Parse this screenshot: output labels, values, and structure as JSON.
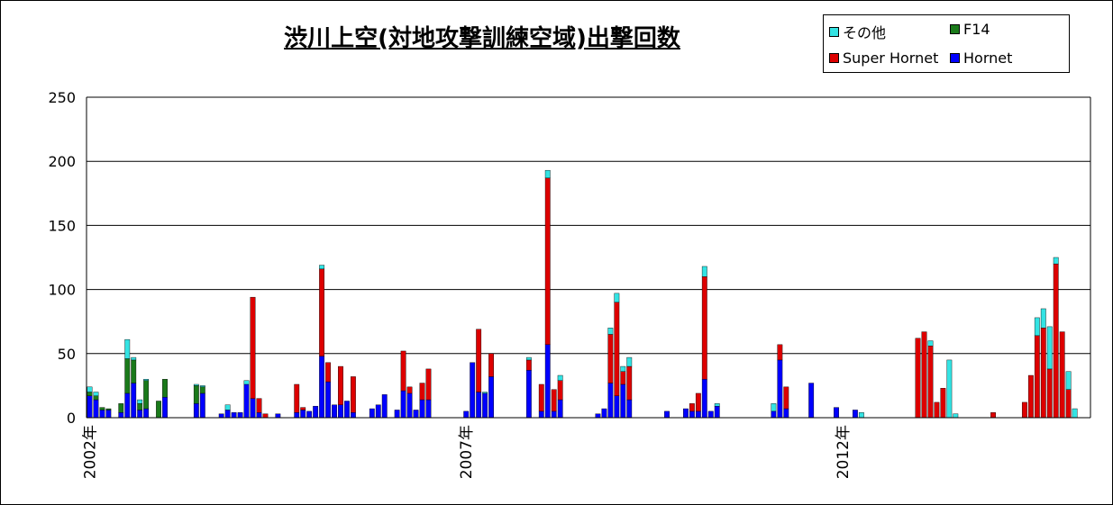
{
  "chart_data": {
    "type": "bar",
    "stacked": true,
    "title": "渋川上空(対地攻撃訓練空域)出撃回数",
    "xlabel": "",
    "ylabel": "",
    "ylim": [
      0,
      250
    ],
    "yticks": [
      0,
      50,
      100,
      150,
      200,
      250
    ],
    "grid": true,
    "legend_position": "top-right",
    "start": "2002-01",
    "x_tick_labels": [
      {
        "month_index": 0,
        "label": "2002年"
      },
      {
        "month_index": 60,
        "label": "2007年"
      },
      {
        "month_index": 120,
        "label": "2012年"
      }
    ],
    "series": [
      {
        "key": "hornet",
        "name": "Hornet",
        "color": "#0000ff",
        "values": [
          17,
          14,
          6,
          6,
          0,
          4,
          19,
          27,
          6,
          7,
          0,
          0,
          16,
          0,
          0,
          0,
          0,
          11,
          19,
          0,
          0,
          3,
          6,
          4,
          4,
          26,
          15,
          4,
          0,
          0,
          3,
          0,
          0,
          4,
          6,
          5,
          9,
          48,
          28,
          10,
          10,
          13,
          4,
          0,
          0,
          7,
          10,
          18,
          0,
          6,
          21,
          19,
          6,
          14,
          14,
          0,
          0,
          0,
          0,
          0,
          5,
          43,
          20,
          19,
          32,
          0,
          0,
          0,
          0,
          0,
          37,
          0,
          5,
          57,
          5,
          14,
          0,
          0,
          0,
          0,
          0,
          3,
          7,
          27,
          17,
          26,
          14,
          0,
          0,
          0,
          0,
          0,
          5,
          0,
          0,
          7,
          5,
          5,
          30,
          5,
          9,
          0,
          0,
          0,
          0,
          0,
          0,
          0,
          0,
          5,
          45,
          7,
          0,
          0,
          0,
          27,
          0,
          0,
          0,
          8,
          0,
          0,
          6,
          0,
          0,
          0,
          0,
          0,
          0,
          0,
          0,
          0,
          0,
          0,
          0,
          0,
          0,
          0,
          0,
          0,
          0,
          0,
          0,
          0,
          0,
          0,
          0,
          0,
          0,
          0,
          0,
          0,
          0,
          0,
          0,
          0,
          0,
          0,
          0,
          0
        ]
      },
      {
        "key": "super_hornet",
        "name": "Super Hornet",
        "color": "#dd0000",
        "values": [
          0,
          0,
          0,
          0,
          0,
          0,
          0,
          0,
          0,
          0,
          0,
          0,
          0,
          0,
          0,
          0,
          0,
          0,
          0,
          0,
          0,
          0,
          0,
          0,
          0,
          0,
          79,
          11,
          3,
          0,
          0,
          0,
          0,
          22,
          2,
          0,
          0,
          68,
          15,
          0,
          30,
          0,
          28,
          0,
          0,
          0,
          0,
          0,
          0,
          0,
          31,
          5,
          0,
          13,
          24,
          0,
          0,
          0,
          0,
          0,
          0,
          0,
          49,
          0,
          18,
          0,
          0,
          0,
          0,
          0,
          8,
          0,
          21,
          130,
          17,
          15,
          0,
          0,
          0,
          0,
          0,
          0,
          0,
          38,
          73,
          10,
          26,
          0,
          0,
          0,
          0,
          0,
          0,
          0,
          0,
          0,
          6,
          14,
          80,
          0,
          0,
          0,
          0,
          0,
          0,
          0,
          0,
          0,
          0,
          0,
          12,
          17,
          0,
          0,
          0,
          0,
          0,
          0,
          0,
          0,
          0,
          0,
          0,
          0,
          0,
          0,
          0,
          0,
          0,
          0,
          0,
          0,
          62,
          67,
          56,
          12,
          23,
          0,
          0,
          0,
          0,
          0,
          0,
          0,
          4,
          0,
          0,
          0,
          0,
          12,
          33,
          64,
          70,
          38,
          120,
          67,
          22,
          0,
          0,
          0,
          0,
          0,
          0,
          0,
          0
        ]
      },
      {
        "key": "f14",
        "name": "F14",
        "color": "#1a7a1a",
        "values": [
          3,
          3,
          2,
          1,
          0,
          7,
          27,
          18,
          5,
          22,
          0,
          13,
          14,
          0,
          0,
          0,
          0,
          14,
          5,
          0,
          0,
          0,
          0,
          0,
          0,
          0,
          0,
          0,
          0,
          0,
          0,
          0,
          0,
          0,
          0,
          0,
          0,
          0,
          0,
          0,
          0,
          0,
          0,
          0,
          0,
          0,
          0,
          0,
          0,
          0,
          0,
          0,
          0,
          0,
          0,
          0,
          0,
          0,
          0,
          0,
          0,
          0,
          0,
          0,
          0,
          0,
          0,
          0,
          0,
          0,
          0,
          0,
          0,
          0,
          0,
          0,
          0,
          0,
          0,
          0,
          0,
          0,
          0,
          0,
          0,
          0,
          0,
          0,
          0,
          0,
          0,
          0,
          0,
          0,
          0,
          0,
          0,
          0,
          0,
          0,
          0,
          0,
          0,
          0,
          0,
          0,
          0,
          0,
          0,
          0,
          0,
          0,
          0,
          0,
          0,
          0,
          0,
          0,
          0,
          0,
          0,
          0,
          0,
          0,
          0,
          0,
          0,
          0,
          0,
          0,
          0,
          0,
          0,
          0,
          0,
          0,
          0,
          0,
          0,
          0,
          0,
          0,
          0,
          0,
          0,
          0,
          0,
          0,
          0,
          0,
          0,
          0,
          0,
          0,
          0,
          0,
          0,
          0,
          0,
          0,
          0,
          0,
          0,
          0,
          0,
          0,
          0,
          0,
          0,
          0,
          0,
          0,
          0,
          0,
          0,
          0,
          0,
          0,
          0,
          0,
          0,
          0,
          0,
          0,
          0,
          0
        ]
      },
      {
        "key": "other",
        "name": "その他",
        "color": "#33e3e3",
        "values": [
          4,
          3,
          0,
          0,
          0,
          0,
          15,
          2,
          3,
          1,
          0,
          0,
          0,
          0,
          0,
          0,
          0,
          1,
          1,
          0,
          0,
          0,
          4,
          0,
          0,
          3,
          0,
          0,
          0,
          0,
          0,
          0,
          0,
          0,
          0,
          0,
          0,
          3,
          0,
          0,
          0,
          0,
          0,
          0,
          0,
          0,
          0,
          0,
          0,
          0,
          0,
          0,
          0,
          0,
          0,
          0,
          0,
          0,
          0,
          0,
          0,
          0,
          0,
          1,
          0,
          0,
          0,
          0,
          0,
          0,
          2,
          0,
          0,
          6,
          0,
          4,
          0,
          0,
          0,
          0,
          0,
          0,
          0,
          5,
          7,
          4,
          7,
          0,
          0,
          0,
          0,
          0,
          0,
          0,
          0,
          0,
          0,
          0,
          8,
          0,
          2,
          0,
          0,
          0,
          0,
          0,
          0,
          0,
          0,
          6,
          0,
          0,
          0,
          0,
          0,
          0,
          0,
          0,
          0,
          0,
          0,
          0,
          0,
          4,
          0,
          0,
          0,
          0,
          0,
          0,
          0,
          0,
          0,
          0,
          4,
          0,
          0,
          45,
          3,
          0,
          0,
          0,
          0,
          0,
          0,
          0,
          0,
          0,
          0,
          0,
          0,
          14,
          15,
          33,
          5,
          0,
          14,
          7,
          0,
          0,
          0,
          0,
          0,
          0,
          0,
          0
        ]
      }
    ]
  }
}
